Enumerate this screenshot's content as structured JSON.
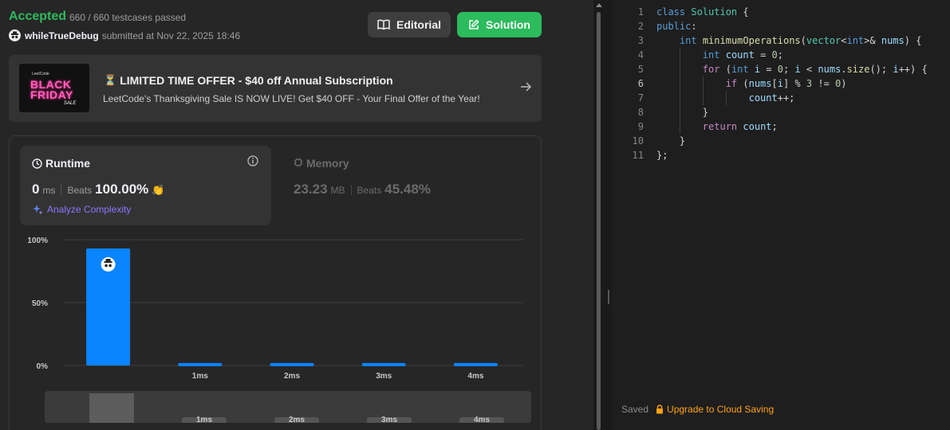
{
  "result": {
    "status": "Accepted",
    "testcases": "660 / 660 testcases passed",
    "username": "whileTrueDebug",
    "submitted": "submitted at Nov 22, 2025 18:46"
  },
  "buttons": {
    "editorial": "Editorial",
    "solution": "Solution"
  },
  "promo": {
    "image_brand": "LeetCode",
    "image_text_1": "BLACK",
    "image_text_2": "FRIDAY",
    "image_text_3": "SALE",
    "title": "LIMITED TIME OFFER - $40 off Annual Subscription",
    "subtitle": "LeetCode's Thanksgiving Sale IS NOW LIVE! Get $40 OFF - Your Final Offer of the Year!"
  },
  "runtime": {
    "label": "Runtime",
    "value": "0",
    "unit": "ms",
    "beats_label": "Beats",
    "beats": "100.00%",
    "analyze": "Analyze Complexity"
  },
  "memory": {
    "label": "Memory",
    "value": "23.23",
    "unit": "MB",
    "beats_label": "Beats",
    "beats": "45.48%"
  },
  "chart_data": {
    "type": "bar",
    "categories": [
      "",
      "1ms",
      "2ms",
      "3ms",
      "4ms"
    ],
    "values": [
      93,
      2,
      2,
      2,
      2
    ],
    "yticks": [
      "0%",
      "50%",
      "100%"
    ],
    "ylim": [
      0,
      100
    ],
    "highlight_index": 0,
    "grid": true
  },
  "mini_chart": {
    "labels": [
      "1ms",
      "2ms",
      "3ms",
      "4ms"
    ]
  },
  "editor": {
    "active_line": 6,
    "lines": [
      "class Solution {",
      "public:",
      "    int minimumOperations(vector<int>& nums) {",
      "        int count = 0;",
      "        for (int i = 0; i < nums.size(); i++) {",
      "            if (nums[i] % 3 != 0)",
      "                count++;",
      "        }",
      "        return count;",
      "    }",
      "};"
    ],
    "saved": "Saved",
    "upgrade": "Upgrade to Cloud Saving"
  },
  "colors": {
    "accepted": "#2cbb5d",
    "bar": "#0a84ff",
    "upgrade": "#ffa116",
    "analyze": "#8c78ff"
  }
}
